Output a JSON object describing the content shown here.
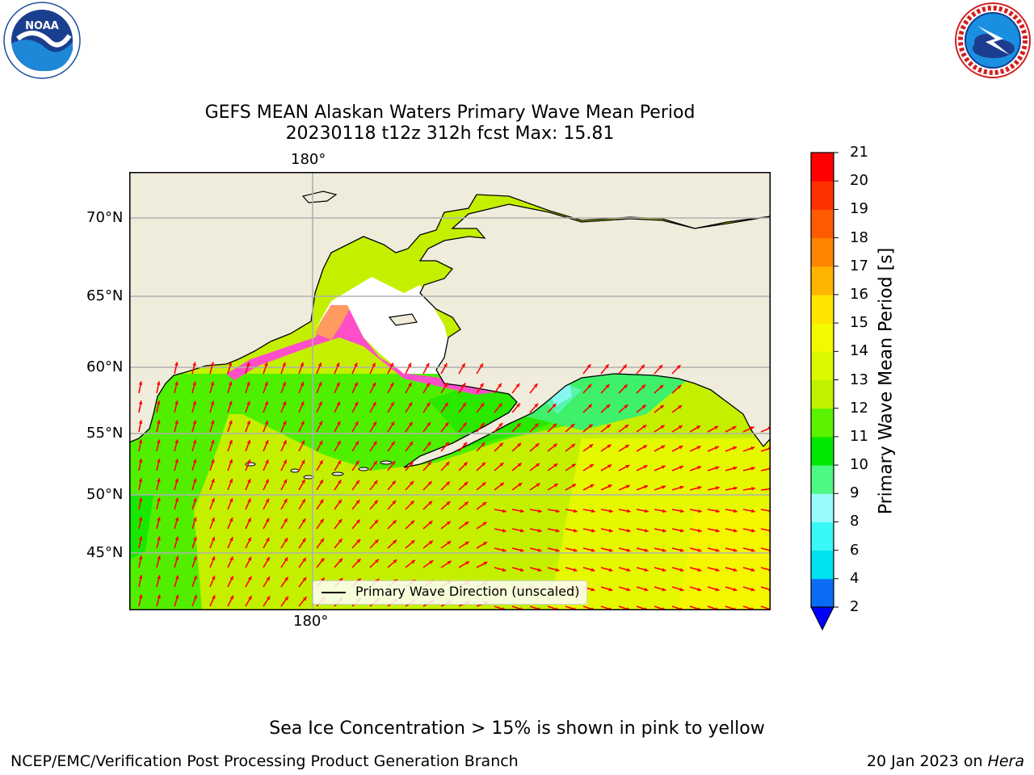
{
  "header": {
    "title_line1": "GEFS MEAN Alaskan Waters Primary Wave Mean Period",
    "title_line2": "20230118 t12z 312h fcst   Max: 15.81"
  },
  "logos": {
    "left": {
      "icon": "noaa-logo-icon",
      "text": "NOAA",
      "ring_text": "NATIONAL OCEANIC AND ATMOSPHERIC ADMINISTRATION · U.S. DEPARTMENT OF COMMERCE"
    },
    "right": {
      "icon": "nws-logo-icon",
      "ring_text": "NATIONAL WEATHER SERVICE"
    }
  },
  "map": {
    "lat_labels": [
      "70°N",
      "65°N",
      "60°N",
      "55°N",
      "50°N",
      "45°N"
    ],
    "lon_label_top": "180°",
    "lon_label_bottom": "180°",
    "legend_label": "Primary Wave Direction (unscaled)",
    "colors": {
      "land": "#efecdc",
      "arrow": "#ff0000",
      "gridline": "#b0b0b0",
      "sea_ice": "#ff4fc8"
    }
  },
  "colorbar": {
    "label": "Primary Wave Mean Period [s]",
    "ticks": [
      "2",
      "4",
      "6",
      "8",
      "9",
      "10",
      "11",
      "12",
      "13",
      "14",
      "15",
      "16",
      "17",
      "18",
      "19",
      "20",
      "21"
    ],
    "colors": [
      "#0a6cf5",
      "#00e1f0",
      "#3af7f7",
      "#99fbfb",
      "#4ef884",
      "#00e800",
      "#5af200",
      "#c0f200",
      "#dcf800",
      "#f4f800",
      "#ffe400",
      "#ffb400",
      "#ff8400",
      "#ff5a00",
      "#ff3000",
      "#ff0000"
    ],
    "under_color": "#0000ff"
  },
  "notes": {
    "sea_ice": "Sea Ice Concentration > 15% is shown in pink to yellow"
  },
  "footer": {
    "left": "NCEP/EMC/Verification Post Processing Product Generation Branch",
    "date": "20 Jan 2023 on ",
    "machine": "Hera"
  }
}
